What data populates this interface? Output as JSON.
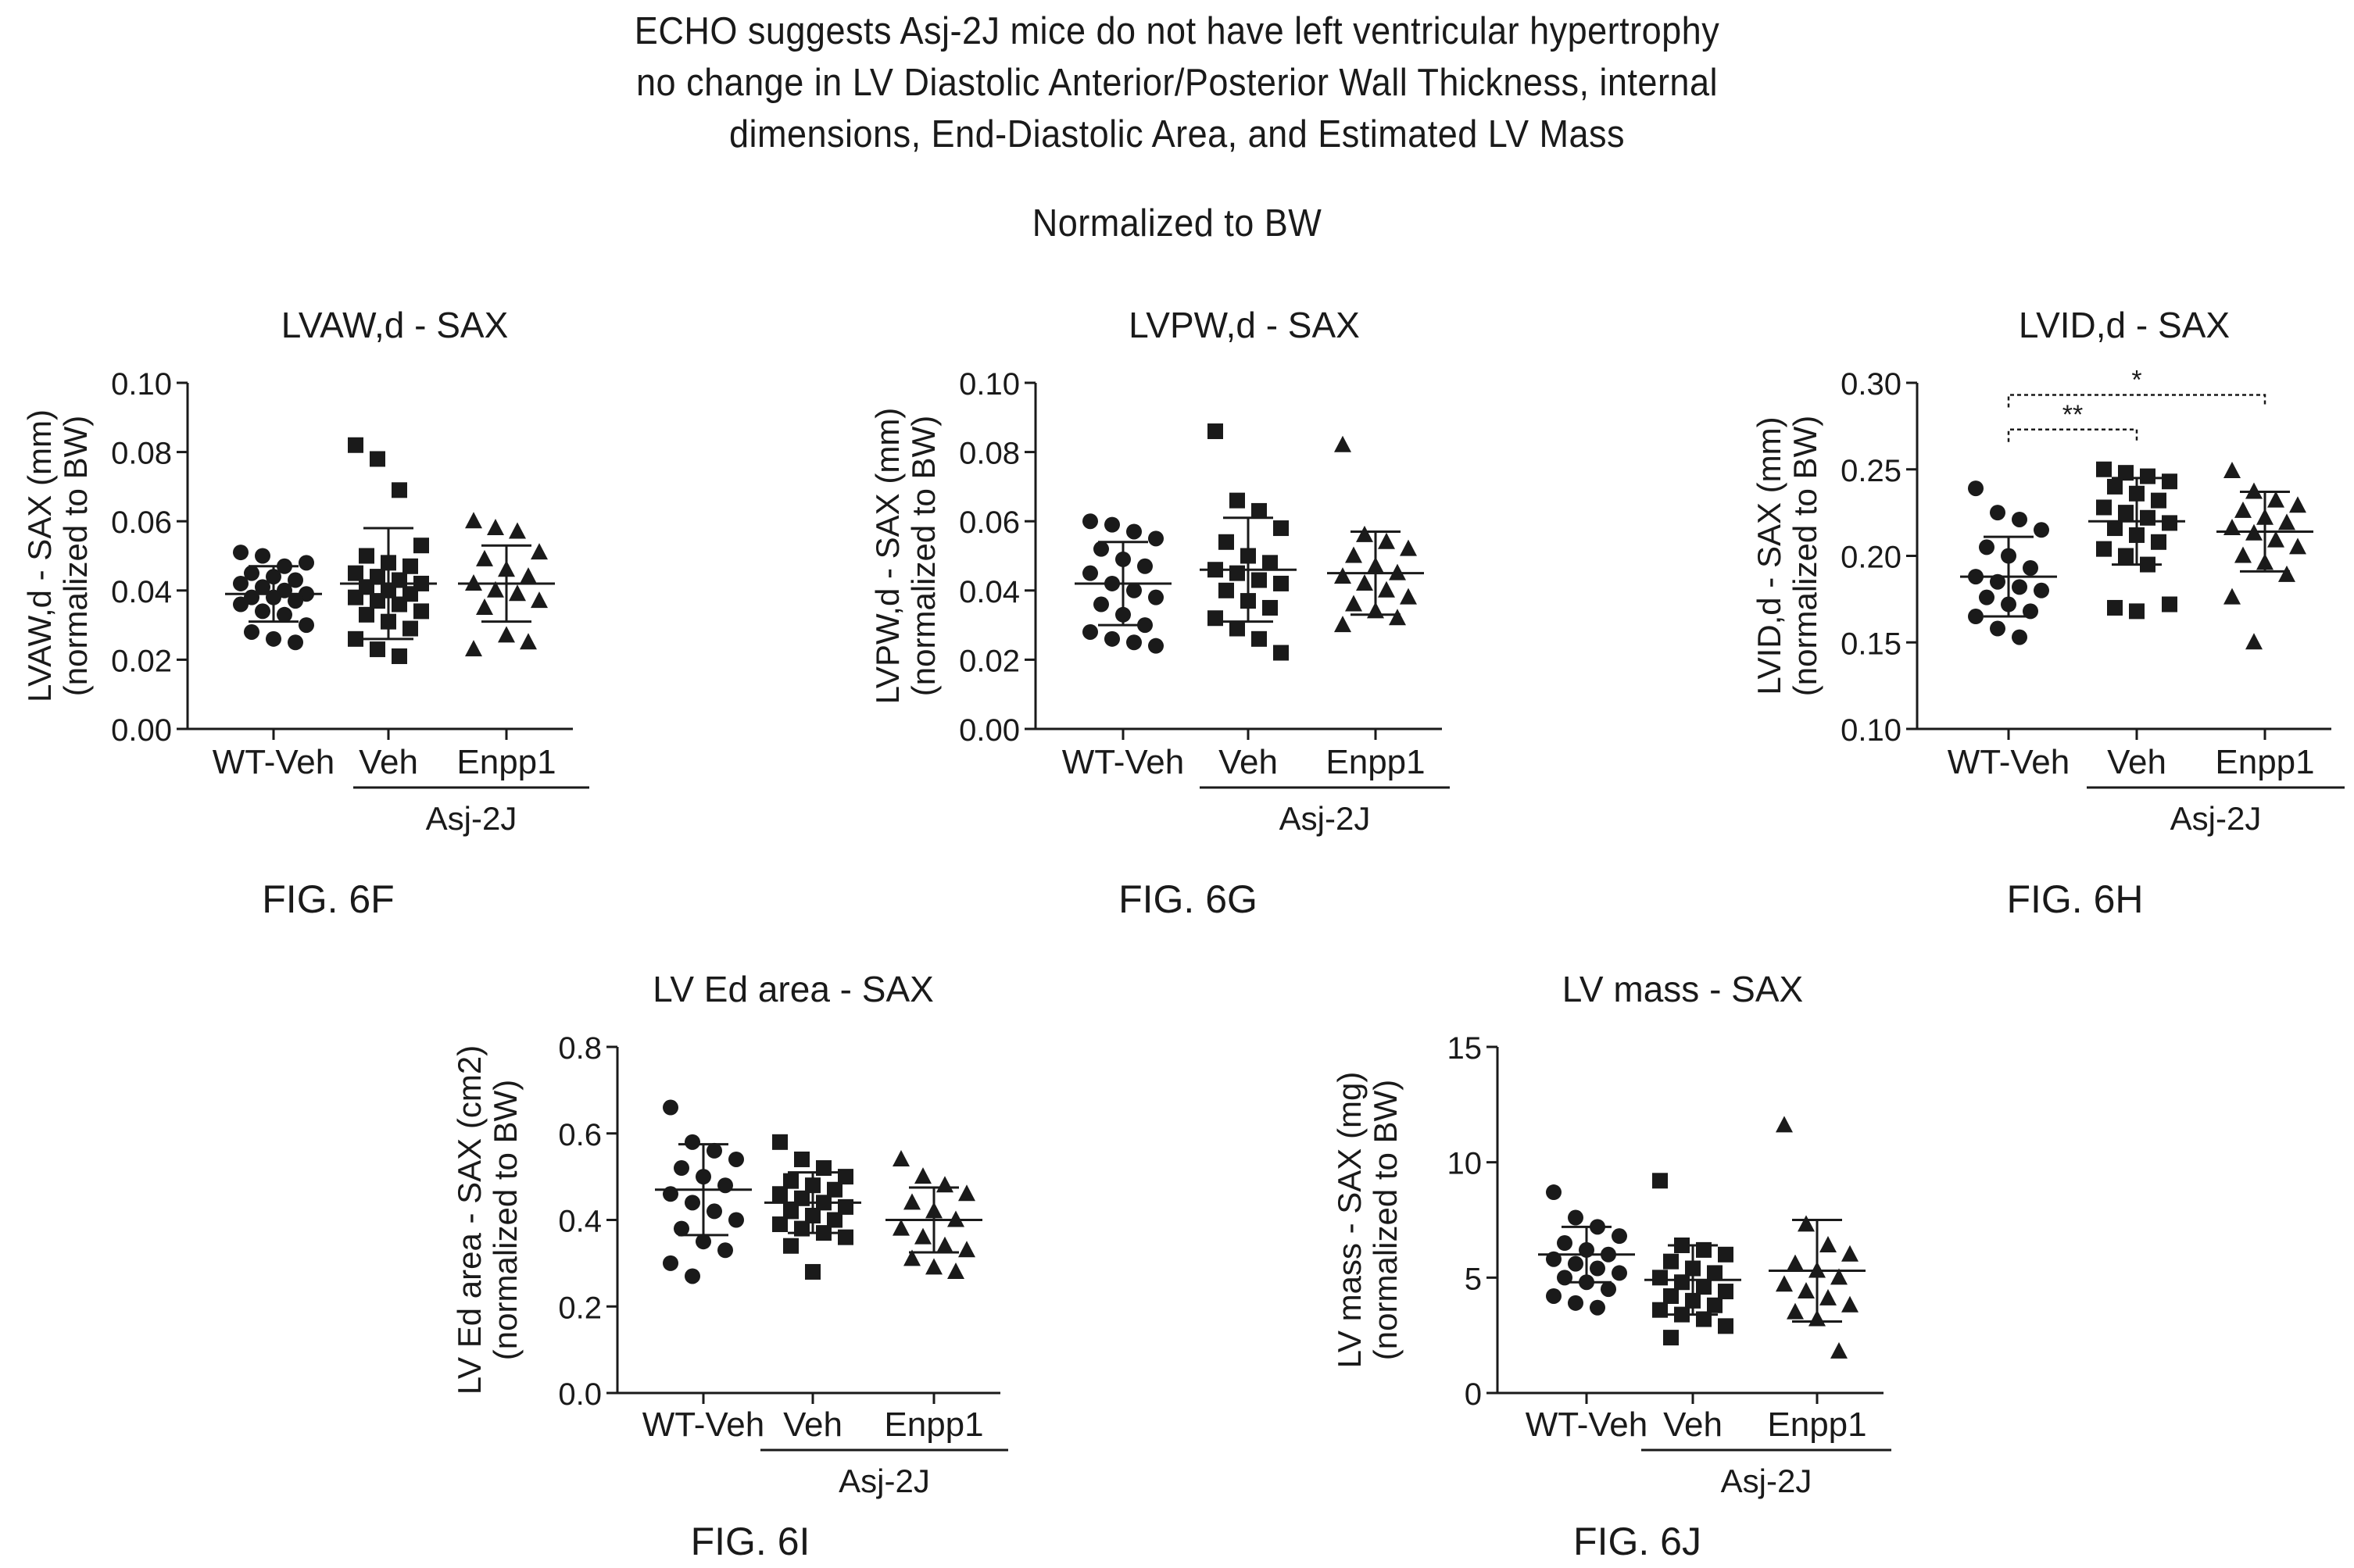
{
  "header": {
    "lines": [
      "ECHO suggests Asj-2J mice do not have left ventricular hypertrophy",
      "no change in LV Diastolic Anterior/Posterior Wall Thickness, internal",
      "dimensions, End-Diastolic Area, and Estimated LV Mass"
    ],
    "subtitle": "Normalized to BW"
  },
  "chart_data": [
    {
      "type": "scatter",
      "figure_label": "FIG. 6F",
      "title": "LVAW,d - SAX",
      "ylabel_lines": [
        "LVAW,d - SAX (mm)",
        "(normalized to BW)"
      ],
      "ylim": [
        0,
        0.1
      ],
      "yticks": [
        0.0,
        0.02,
        0.04,
        0.06,
        0.08,
        0.1
      ],
      "ytick_labels": [
        "0.00",
        "0.02",
        "0.04",
        "0.06",
        "0.08",
        "0.10"
      ],
      "categories": [
        "WT-Veh",
        "Veh",
        "Enpp1"
      ],
      "group_label": "Asj-2J",
      "group_span": [
        "Veh",
        "Enpp1"
      ],
      "markers": [
        "circle",
        "square",
        "triangle"
      ],
      "series": [
        {
          "mean": 0.039,
          "sd": 0.008,
          "values": [
            0.051,
            0.05,
            0.047,
            0.048,
            0.045,
            0.044,
            0.043,
            0.042,
            0.041,
            0.04,
            0.039,
            0.038,
            0.038,
            0.037,
            0.036,
            0.034,
            0.033,
            0.03,
            0.028,
            0.026,
            0.025
          ]
        },
        {
          "mean": 0.042,
          "sd": 0.016,
          "values": [
            0.082,
            0.078,
            0.069,
            0.053,
            0.05,
            0.048,
            0.047,
            0.045,
            0.044,
            0.043,
            0.042,
            0.041,
            0.04,
            0.039,
            0.038,
            0.037,
            0.036,
            0.034,
            0.033,
            0.031,
            0.029,
            0.026,
            0.023,
            0.021
          ]
        },
        {
          "mean": 0.042,
          "sd": 0.011,
          "values": [
            0.06,
            0.058,
            0.057,
            0.051,
            0.049,
            0.046,
            0.044,
            0.042,
            0.04,
            0.039,
            0.037,
            0.035,
            0.027,
            0.025,
            0.023
          ]
        }
      ],
      "significance": []
    },
    {
      "type": "scatter",
      "figure_label": "FIG. 6G",
      "title": "LVPW,d - SAX",
      "ylabel_lines": [
        "LVPW,d - SAX (mm)",
        "(normalized to BW)"
      ],
      "ylim": [
        0,
        0.1
      ],
      "yticks": [
        0.0,
        0.02,
        0.04,
        0.06,
        0.08,
        0.1
      ],
      "ytick_labels": [
        "0.00",
        "0.02",
        "0.04",
        "0.06",
        "0.08",
        "0.10"
      ],
      "categories": [
        "WT-Veh",
        "Veh",
        "Enpp1"
      ],
      "group_label": "Asj-2J",
      "group_span": [
        "Veh",
        "Enpp1"
      ],
      "markers": [
        "circle",
        "square",
        "triangle"
      ],
      "series": [
        {
          "mean": 0.042,
          "sd": 0.012,
          "values": [
            0.06,
            0.059,
            0.057,
            0.055,
            0.052,
            0.049,
            0.047,
            0.045,
            0.042,
            0.04,
            0.038,
            0.036,
            0.033,
            0.03,
            0.028,
            0.026,
            0.025,
            0.024
          ]
        },
        {
          "mean": 0.046,
          "sd": 0.015,
          "values": [
            0.086,
            0.066,
            0.063,
            0.058,
            0.054,
            0.05,
            0.048,
            0.046,
            0.045,
            0.043,
            0.042,
            0.04,
            0.037,
            0.035,
            0.032,
            0.029,
            0.026,
            0.022
          ]
        },
        {
          "mean": 0.045,
          "sd": 0.012,
          "values": [
            0.082,
            0.056,
            0.054,
            0.052,
            0.05,
            0.047,
            0.045,
            0.044,
            0.042,
            0.04,
            0.038,
            0.036,
            0.034,
            0.032,
            0.03
          ]
        }
      ],
      "significance": []
    },
    {
      "type": "scatter",
      "figure_label": "FIG. 6H",
      "title": "LVID,d - SAX",
      "ylabel_lines": [
        "LVID,d - SAX (mm)",
        "(normalized to BW)"
      ],
      "ylim": [
        0.1,
        0.3
      ],
      "yticks": [
        0.1,
        0.15,
        0.2,
        0.25,
        0.3
      ],
      "ytick_labels": [
        "0.10",
        "0.15",
        "0.20",
        "0.25",
        "0.30"
      ],
      "categories": [
        "WT-Veh",
        "Veh",
        "Enpp1"
      ],
      "group_label": "Asj-2J",
      "group_span": [
        "Veh",
        "Enpp1"
      ],
      "markers": [
        "circle",
        "square",
        "triangle"
      ],
      "series": [
        {
          "mean": 0.188,
          "sd": 0.023,
          "values": [
            0.239,
            0.225,
            0.221,
            0.215,
            0.205,
            0.2,
            0.193,
            0.188,
            0.185,
            0.182,
            0.18,
            0.176,
            0.172,
            0.168,
            0.165,
            0.158,
            0.153
          ]
        },
        {
          "mean": 0.22,
          "sd": 0.025,
          "values": [
            0.25,
            0.248,
            0.246,
            0.243,
            0.24,
            0.236,
            0.232,
            0.228,
            0.225,
            0.222,
            0.219,
            0.216,
            0.212,
            0.208,
            0.204,
            0.2,
            0.195,
            0.172,
            0.17,
            0.168
          ]
        },
        {
          "mean": 0.214,
          "sd": 0.023,
          "values": [
            0.249,
            0.237,
            0.232,
            0.229,
            0.226,
            0.222,
            0.219,
            0.216,
            0.213,
            0.209,
            0.205,
            0.2,
            0.196,
            0.189,
            0.176,
            0.15
          ]
        }
      ],
      "significance": [
        {
          "from": "WT-Veh",
          "to": "Veh",
          "y": 0.273,
          "label": "**"
        },
        {
          "from": "WT-Veh",
          "to": "Enpp1",
          "y": 0.293,
          "label": "*"
        }
      ]
    },
    {
      "type": "scatter",
      "figure_label": "FIG. 6I",
      "title": "LV Ed area - SAX",
      "ylabel_lines": [
        "LV Ed area - SAX (cm2)",
        "(normalized to BW)"
      ],
      "ylim": [
        0,
        0.8
      ],
      "yticks": [
        0.0,
        0.2,
        0.4,
        0.6,
        0.8
      ],
      "ytick_labels": [
        "0.0",
        "0.2",
        "0.4",
        "0.6",
        "0.8"
      ],
      "categories": [
        "WT-Veh",
        "Veh",
        "Enpp1"
      ],
      "group_label": "Asj-2J",
      "group_span": [
        "Veh",
        "Enpp1"
      ],
      "markers": [
        "circle",
        "square",
        "triangle"
      ],
      "series": [
        {
          "mean": 0.47,
          "sd": 0.105,
          "values": [
            0.66,
            0.58,
            0.56,
            0.54,
            0.52,
            0.5,
            0.48,
            0.46,
            0.44,
            0.42,
            0.4,
            0.38,
            0.35,
            0.33,
            0.3,
            0.27
          ]
        },
        {
          "mean": 0.44,
          "sd": 0.07,
          "values": [
            0.58,
            0.54,
            0.52,
            0.5,
            0.49,
            0.48,
            0.47,
            0.46,
            0.45,
            0.44,
            0.43,
            0.42,
            0.41,
            0.4,
            0.39,
            0.38,
            0.37,
            0.36,
            0.34,
            0.28
          ]
        },
        {
          "mean": 0.4,
          "sd": 0.075,
          "values": [
            0.54,
            0.5,
            0.48,
            0.46,
            0.44,
            0.42,
            0.4,
            0.38,
            0.36,
            0.34,
            0.33,
            0.31,
            0.29,
            0.28
          ]
        }
      ],
      "significance": []
    },
    {
      "type": "scatter",
      "figure_label": "FIG. 6J",
      "title": "LV mass - SAX",
      "ylabel_lines": [
        "LV mass - SAX (mg)",
        "(normalized to BW)"
      ],
      "ylim": [
        0,
        15
      ],
      "yticks": [
        0,
        5,
        10,
        15
      ],
      "ytick_labels": [
        "0",
        "5",
        "10",
        "15"
      ],
      "categories": [
        "WT-Veh",
        "Veh",
        "Enpp1"
      ],
      "group_label": "Asj-2J",
      "group_span": [
        "Veh",
        "Enpp1"
      ],
      "markers": [
        "circle",
        "square",
        "triangle"
      ],
      "series": [
        {
          "mean": 6.0,
          "sd": 1.2,
          "values": [
            8.7,
            7.6,
            7.2,
            6.8,
            6.5,
            6.2,
            6.0,
            5.8,
            5.6,
            5.4,
            5.2,
            5.0,
            4.8,
            4.5,
            4.2,
            3.9,
            3.7
          ]
        },
        {
          "mean": 4.9,
          "sd": 1.5,
          "values": [
            9.2,
            6.4,
            6.2,
            6.0,
            5.7,
            5.4,
            5.2,
            5.0,
            4.8,
            4.6,
            4.4,
            4.2,
            4.0,
            3.8,
            3.6,
            3.4,
            3.2,
            2.9,
            2.4
          ]
        },
        {
          "mean": 5.3,
          "sd": 2.2,
          "values": [
            11.6,
            7.3,
            6.4,
            6.0,
            5.6,
            5.3,
            5.0,
            4.7,
            4.4,
            4.1,
            3.8,
            3.5,
            3.2,
            1.8
          ]
        }
      ],
      "significance": []
    }
  ]
}
